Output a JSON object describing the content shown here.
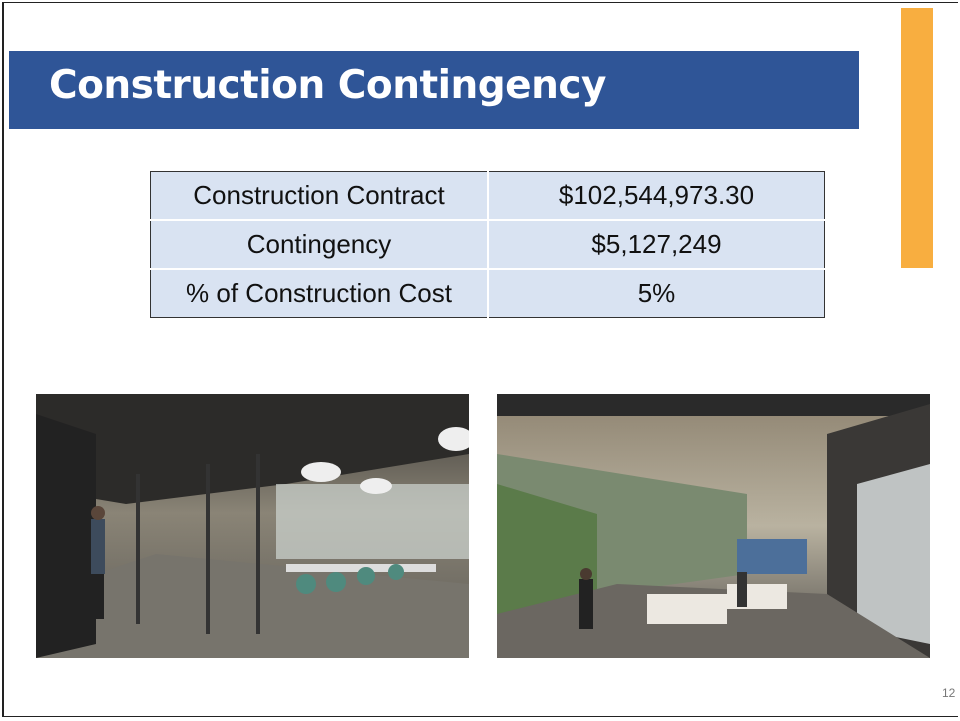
{
  "slide": {
    "title": "Construction Contingency",
    "table": {
      "rows": [
        [
          "Construction Contract",
          "$102,544,973.30"
        ],
        [
          "Contingency",
          "$5,127,249"
        ],
        [
          "% of Construction Cost",
          "5%"
        ]
      ]
    },
    "page_number": "12"
  }
}
